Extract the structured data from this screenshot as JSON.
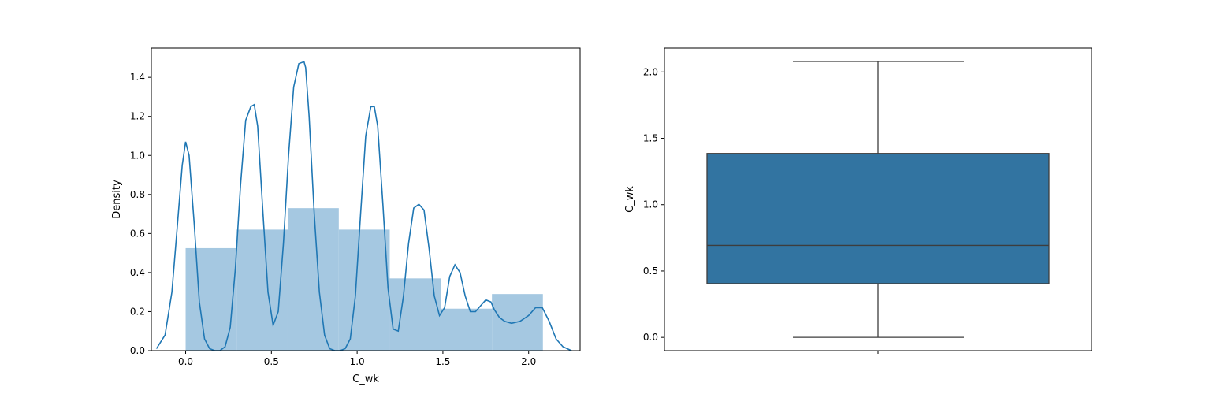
{
  "chart_data": [
    {
      "type": "histogram",
      "xlabel": "C_wk",
      "ylabel": "Density",
      "xlim": [
        -0.2,
        2.3
      ],
      "ylim": [
        0,
        1.55
      ],
      "xticks": [
        0.0,
        0.5,
        1.0,
        1.5,
        2.0
      ],
      "xtick_labels": [
        "0.0",
        "0.5",
        "1.0",
        "1.5",
        "2.0"
      ],
      "yticks": [
        0.0,
        0.2,
        0.4,
        0.6,
        0.8,
        1.0,
        1.2,
        1.4
      ],
      "ytick_labels": [
        "0.0",
        "0.2",
        "0.4",
        "0.6",
        "0.8",
        "1.0",
        "1.2",
        "1.4"
      ],
      "bar_color": "#a5c8e1",
      "line_color": "#1f77b4",
      "bins": [
        {
          "x0": 0.0,
          "x1": 0.298,
          "density": 0.525
        },
        {
          "x0": 0.298,
          "x1": 0.595,
          "density": 0.62
        },
        {
          "x0": 0.595,
          "x1": 0.893,
          "density": 0.73
        },
        {
          "x0": 0.893,
          "x1": 1.19,
          "density": 0.62
        },
        {
          "x0": 1.19,
          "x1": 1.488,
          "density": 0.37
        },
        {
          "x0": 1.488,
          "x1": 1.786,
          "density": 0.215
        },
        {
          "x0": 1.786,
          "x1": 2.083,
          "density": 0.29
        }
      ],
      "kde": {
        "x": [
          -0.17,
          -0.12,
          -0.08,
          -0.05,
          -0.02,
          0.0,
          0.02,
          0.05,
          0.08,
          0.11,
          0.14,
          0.17,
          0.2,
          0.23,
          0.26,
          0.29,
          0.32,
          0.35,
          0.38,
          0.4,
          0.42,
          0.45,
          0.48,
          0.51,
          0.54,
          0.57,
          0.6,
          0.63,
          0.66,
          0.69,
          0.7,
          0.72,
          0.75,
          0.78,
          0.81,
          0.84,
          0.87,
          0.9,
          0.93,
          0.96,
          0.99,
          1.02,
          1.05,
          1.08,
          1.1,
          1.12,
          1.15,
          1.18,
          1.21,
          1.24,
          1.27,
          1.3,
          1.33,
          1.36,
          1.39,
          1.42,
          1.45,
          1.48,
          1.51,
          1.54,
          1.57,
          1.6,
          1.63,
          1.66,
          1.69,
          1.72,
          1.75,
          1.78,
          1.8,
          1.83,
          1.86,
          1.9,
          1.95,
          2.0,
          2.04,
          2.08,
          2.12,
          2.16,
          2.2,
          2.25
        ],
        "y": [
          0.01,
          0.08,
          0.3,
          0.62,
          0.95,
          1.07,
          1.0,
          0.65,
          0.25,
          0.06,
          0.01,
          0.0,
          0.0,
          0.02,
          0.12,
          0.42,
          0.85,
          1.18,
          1.25,
          1.26,
          1.15,
          0.72,
          0.3,
          0.13,
          0.2,
          0.55,
          1.0,
          1.35,
          1.47,
          1.48,
          1.45,
          1.2,
          0.7,
          0.3,
          0.08,
          0.01,
          0.0,
          0.0,
          0.01,
          0.06,
          0.28,
          0.7,
          1.1,
          1.25,
          1.25,
          1.15,
          0.75,
          0.32,
          0.11,
          0.1,
          0.28,
          0.55,
          0.73,
          0.75,
          0.72,
          0.52,
          0.28,
          0.18,
          0.22,
          0.38,
          0.44,
          0.4,
          0.28,
          0.2,
          0.2,
          0.23,
          0.26,
          0.25,
          0.21,
          0.17,
          0.15,
          0.14,
          0.15,
          0.18,
          0.22,
          0.22,
          0.15,
          0.06,
          0.02,
          0.0
        ]
      }
    },
    {
      "type": "box",
      "xlabel": "",
      "ylabel": "C_wk",
      "ylim": [
        -0.1,
        2.18
      ],
      "yticks": [
        0.0,
        0.5,
        1.0,
        1.5,
        2.0
      ],
      "ytick_labels": [
        "0.0",
        "0.5",
        "1.0",
        "1.5",
        "2.0"
      ],
      "box_color": "#3274a1",
      "line_color": "#3d3d3d",
      "whisker_low": 0.0,
      "q1": 0.405,
      "median": 0.693,
      "q3": 1.386,
      "whisker_high": 2.079
    }
  ]
}
